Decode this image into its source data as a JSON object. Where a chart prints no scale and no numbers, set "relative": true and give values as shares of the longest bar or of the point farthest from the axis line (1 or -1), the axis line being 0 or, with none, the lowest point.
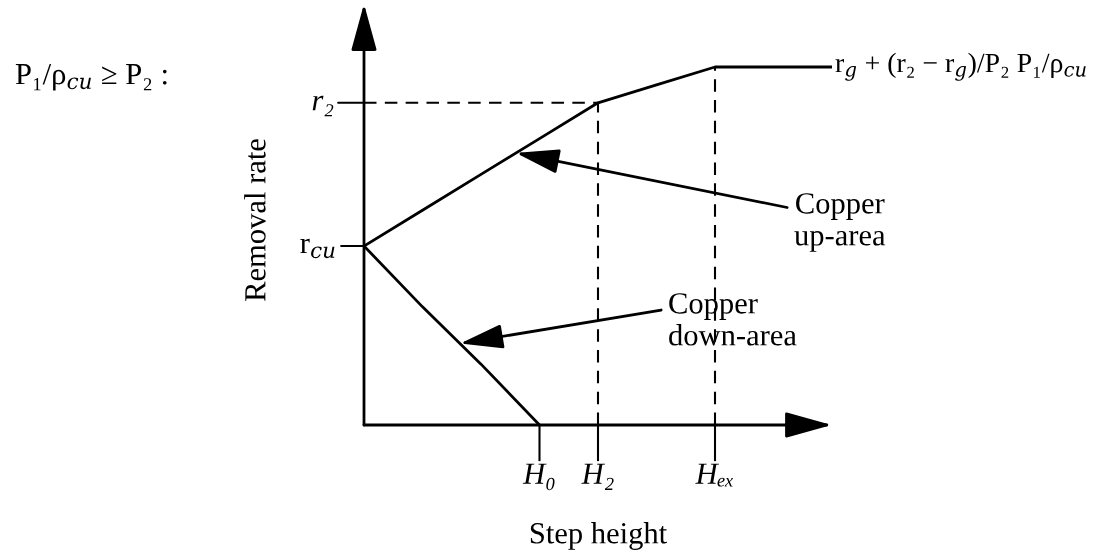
{
  "chart_data": {
    "type": "line",
    "relative": true,
    "title": "P₁/ρ$_{cu}$ ≥ P₂ :",
    "xlabel": "Step height",
    "ylabel": "Removal rate",
    "categories": [
      null,
      null,
      null,
      "H₀",
      "H₂",
      null,
      "Hₑₓ",
      null,
      null
    ],
    "series": [
      {
        "color": "#000000",
        "values": [
          0.5,
          0.6,
          0.7,
          0.8,
          0.9,
          0.95,
          1,
          1,
          1
        ]
      },
      {
        "color": "#000000",
        "values": [
          0.5,
          0.33,
          0.17,
          0,
          null,
          null,
          null,
          null,
          null
        ]
      }
    ],
    "tick_labels": "x",
    "ref_lines": [
      {
        "axis": "y",
        "value": 0.9,
        "label": "r₂",
        "line_style": "dashed",
        "color": "#000000"
      },
      {
        "axis": "x",
        "value": "H₂",
        "line_style": "dashed",
        "color": "#000000"
      },
      {
        "axis": "x",
        "value": "Hₑₓ",
        "line_style": "dashed",
        "color": "#000000"
      }
    ],
    "annotations": [
      "r$_{cu}$",
      "Copper\nup-area",
      "Copper\ndown-area",
      "r$_{g}$ + (r₂ − r$_{g}$)/P₂ P₁/ρ$_{cu}$"
    ]
  }
}
